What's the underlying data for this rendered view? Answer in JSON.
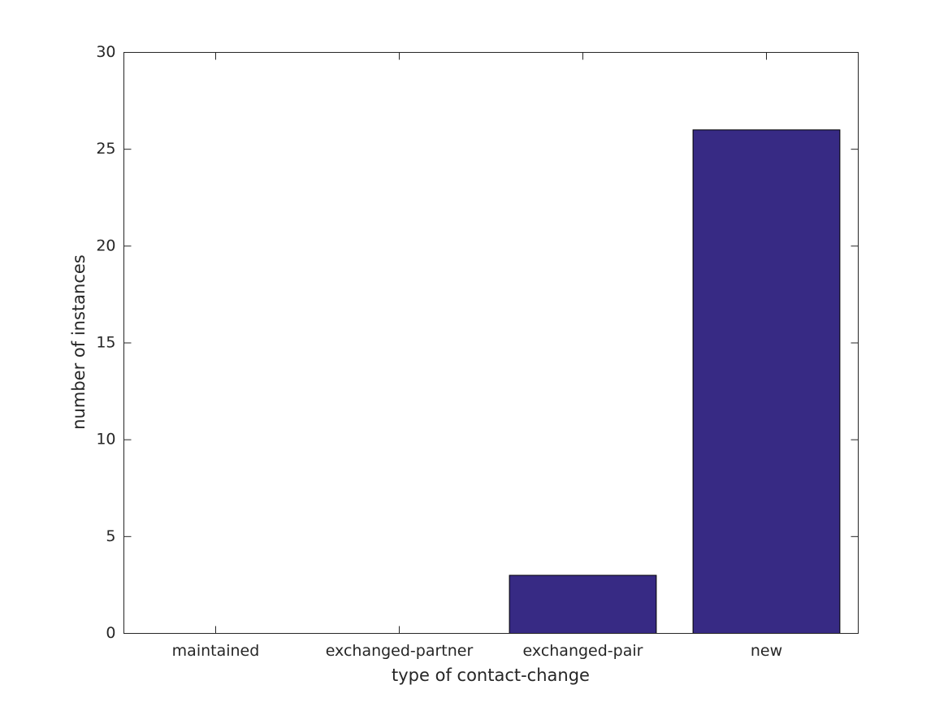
{
  "chart_data": {
    "type": "bar",
    "xlabel": "type of contact-change",
    "ylabel": "number of instances",
    "categories": [
      "maintained",
      "exchanged-partner",
      "exchanged-pair",
      "new"
    ],
    "values": [
      0,
      0,
      3,
      26
    ],
    "color": "#372a84",
    "ylim": [
      0,
      30
    ],
    "yticks": [
      0,
      5,
      10,
      15,
      20,
      25,
      30
    ],
    "grid": false
  }
}
